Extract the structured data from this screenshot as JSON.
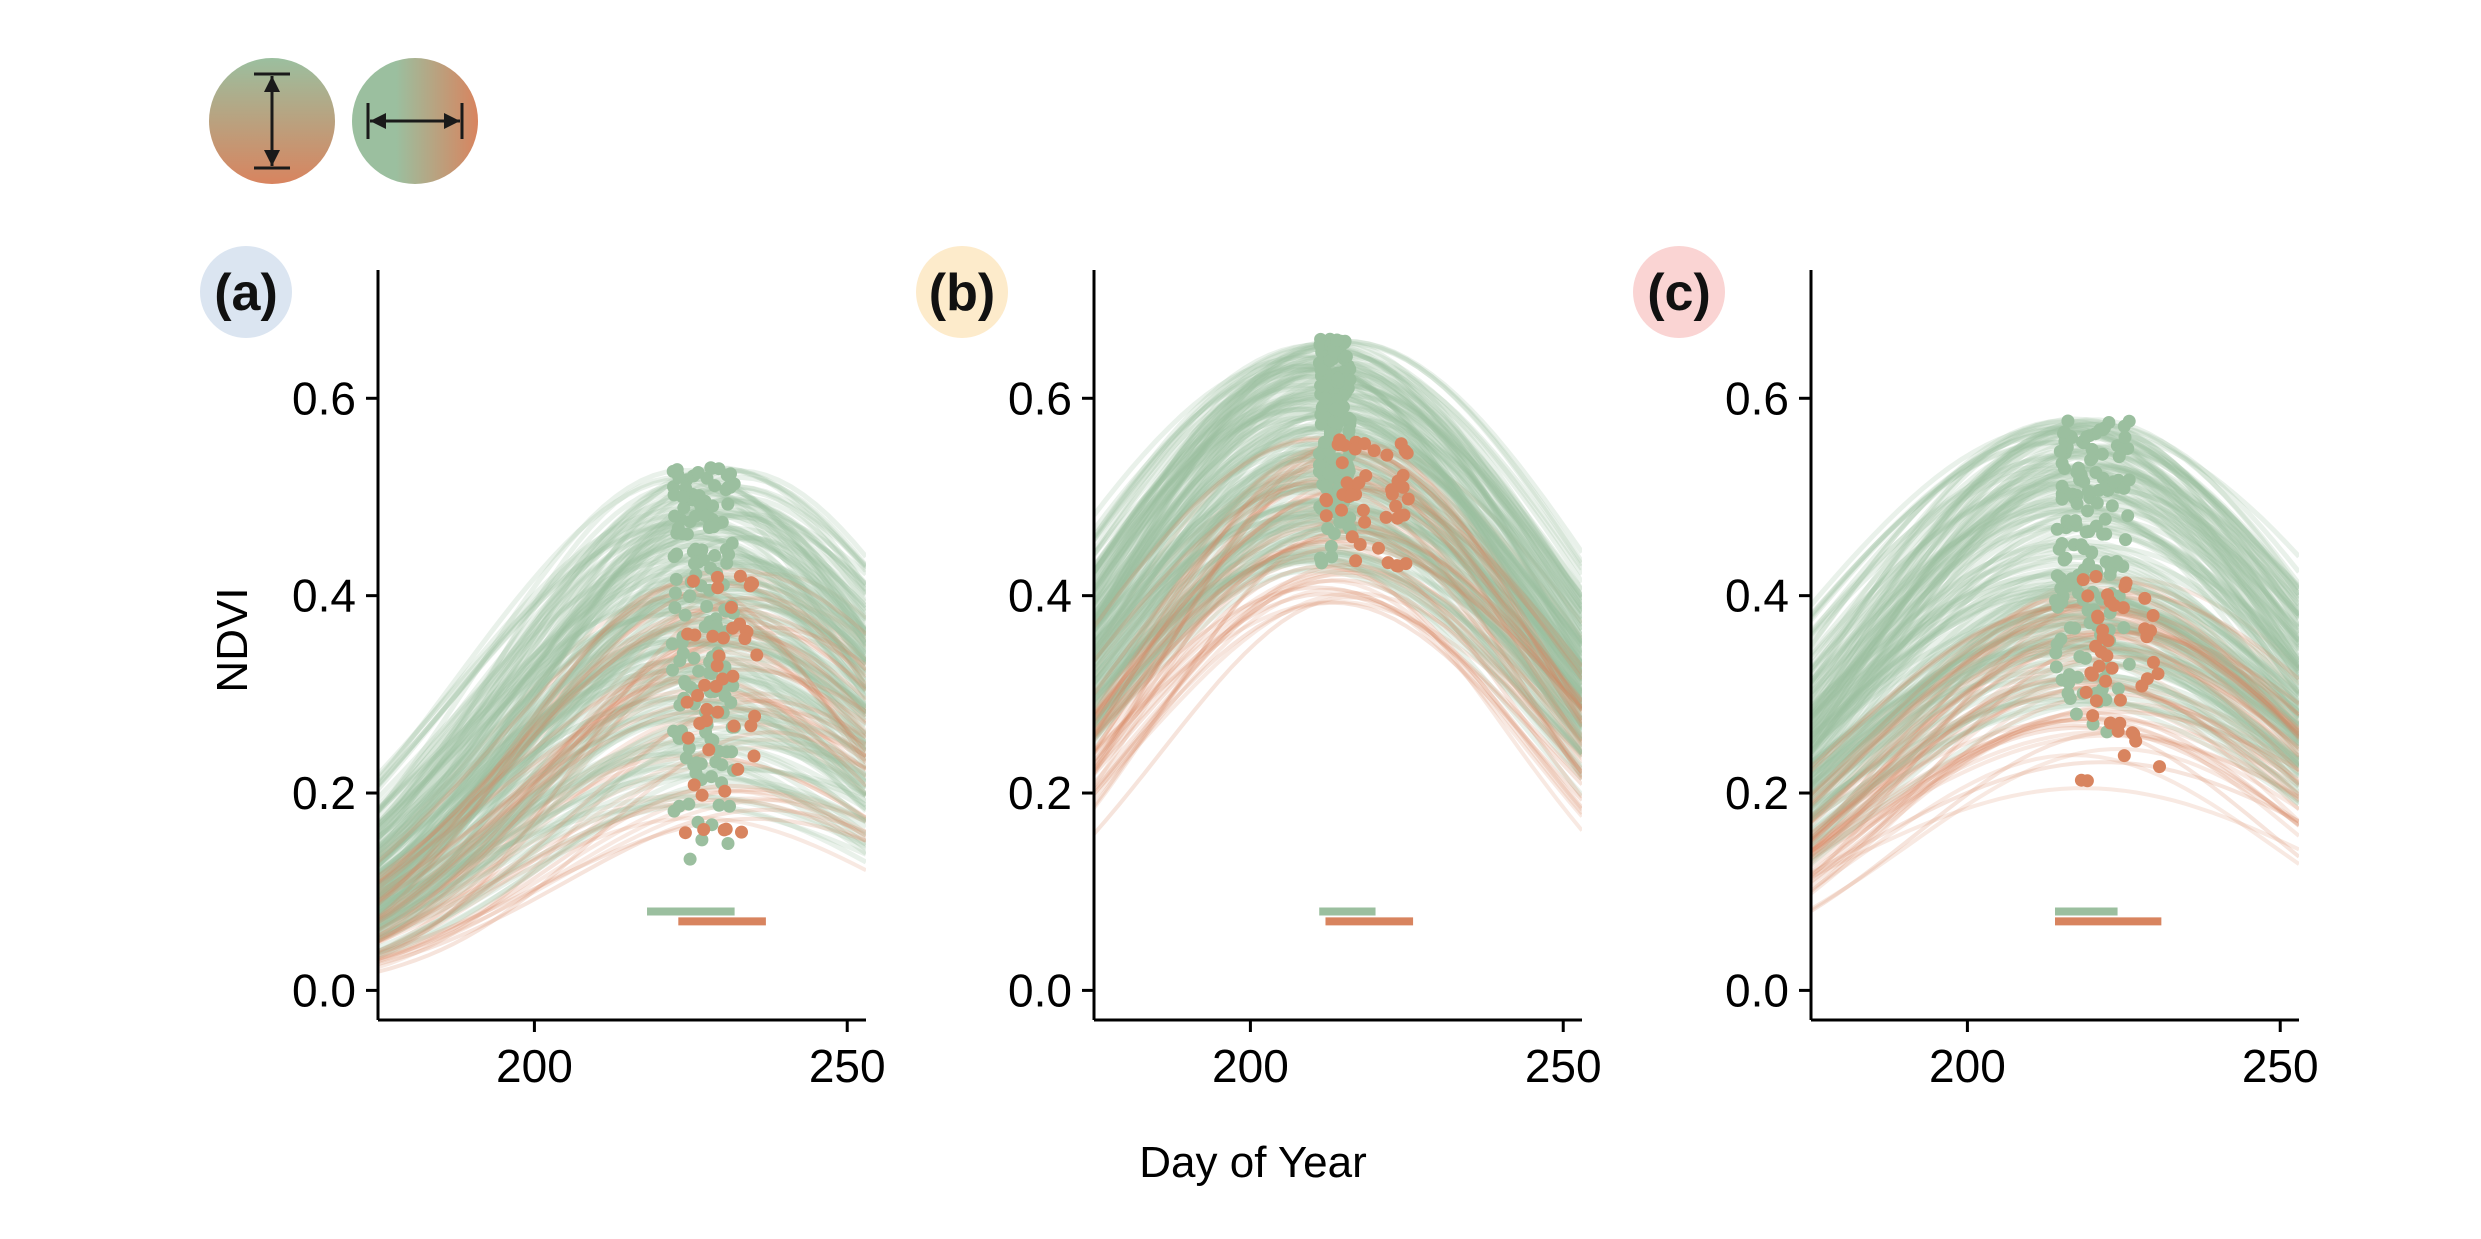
{
  "chart_data": {
    "type": "line",
    "xlabel": "Day of Year",
    "ylabel": "NDVI",
    "xlim": [
      175,
      253
    ],
    "ylim": [
      -0.03,
      0.73
    ],
    "xticks": [
      200,
      250
    ],
    "xtick_labels": [
      "200",
      "250"
    ],
    "yticks": [
      0.0,
      0.2,
      0.4,
      0.6
    ],
    "ytick_labels": [
      "0.0",
      "0.2",
      "0.4",
      "0.6"
    ],
    "grid": false,
    "colors": {
      "green": "#9bbf9f",
      "orange": "#d8845f"
    },
    "icons": [
      "vertical-arrow-gradient-icon",
      "horizontal-arrow-gradient-icon"
    ],
    "panels": [
      {
        "label": "(a)",
        "label_color": "#dbe5f1",
        "curves": {
          "green": {
            "peak_range": [
              0.18,
              0.53
            ],
            "peak_day_range": [
              222,
              234
            ],
            "width_range": [
              28,
              40
            ]
          },
          "orange": {
            "peak_range": [
              0.14,
              0.43
            ],
            "peak_day_range": [
              224,
              238
            ],
            "width_range": [
              26,
              38
            ]
          }
        },
        "green_points": {
          "day_range": [
            222,
            232
          ],
          "ndvi_range": [
            0.11,
            0.53
          ]
        },
        "orange_points": {
          "day_range": [
            224,
            236
          ],
          "ndvi_range": [
            0.13,
            0.43
          ]
        },
        "green_bar": [
          218,
          232
        ],
        "orange_bar": [
          223,
          237
        ]
      },
      {
        "label": "(b)",
        "label_color": "#fdebcb",
        "curves": {
          "green": {
            "peak_range": [
              0.42,
              0.66
            ],
            "peak_day_range": [
              208,
              216
            ],
            "width_range": [
              34,
              44
            ]
          },
          "orange": {
            "peak_range": [
              0.38,
              0.56
            ],
            "peak_day_range": [
              210,
              218
            ],
            "width_range": [
              30,
              40
            ]
          }
        },
        "green_points": {
          "day_range": [
            211,
            216
          ],
          "ndvi_range": [
            0.43,
            0.66
          ]
        },
        "orange_points": {
          "day_range": [
            212,
            226
          ],
          "ndvi_range": [
            0.4,
            0.56
          ]
        },
        "green_bar": [
          211,
          220
        ],
        "orange_bar": [
          212,
          226
        ]
      },
      {
        "label": "(c)",
        "label_color": "#fad4d3",
        "curves": {
          "green": {
            "peak_range": [
              0.28,
              0.58
            ],
            "peak_day_range": [
              214,
              222
            ],
            "width_range": [
              34,
              46
            ]
          },
          "orange": {
            "peak_range": [
              0.2,
              0.42
            ],
            "peak_day_range": [
              216,
              226
            ],
            "width_range": [
              30,
              42
            ]
          }
        },
        "green_points": {
          "day_range": [
            214,
            226
          ],
          "ndvi_range": [
            0.26,
            0.58
          ]
        },
        "orange_points": {
          "day_range": [
            218,
            231
          ],
          "ndvi_range": [
            0.19,
            0.42
          ]
        },
        "green_bar": [
          214,
          224
        ],
        "orange_bar": [
          214,
          231
        ]
      }
    ]
  }
}
